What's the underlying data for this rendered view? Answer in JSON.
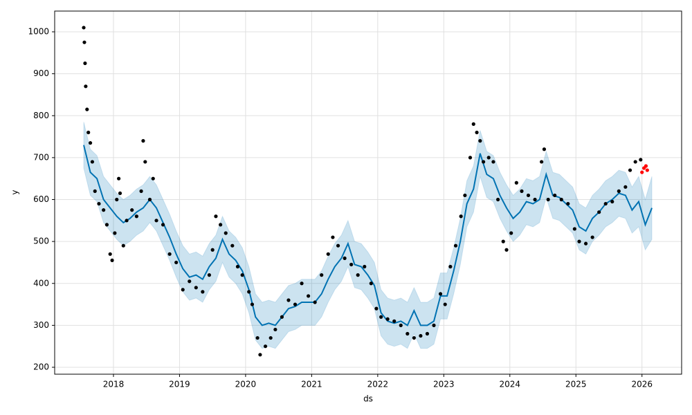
{
  "chart_data": {
    "type": "forecast",
    "x_label": "ds",
    "y_label": "y",
    "xlim": [
      2017.11,
      2026.6
    ],
    "ylim": [
      183.5,
      1049.5
    ],
    "xticks": [
      2018,
      2019,
      2020,
      2021,
      2022,
      2023,
      2024,
      2025,
      2026
    ],
    "yticks": [
      200,
      300,
      400,
      500,
      600,
      700,
      800,
      900,
      1000
    ],
    "grid": true,
    "forecast": {
      "color": "#0072b2",
      "band_color": "#0072b2",
      "x": [
        2017.55,
        2017.65,
        2017.75,
        2017.85,
        2017.95,
        2018.05,
        2018.15,
        2018.25,
        2018.35,
        2018.45,
        2018.55,
        2018.65,
        2018.75,
        2018.85,
        2018.95,
        2019.05,
        2019.15,
        2019.25,
        2019.35,
        2019.45,
        2019.55,
        2019.65,
        2019.75,
        2019.85,
        2019.95,
        2020.05,
        2020.15,
        2020.25,
        2020.35,
        2020.45,
        2020.55,
        2020.65,
        2020.75,
        2020.85,
        2020.95,
        2021.05,
        2021.15,
        2021.25,
        2021.35,
        2021.45,
        2021.55,
        2021.65,
        2021.75,
        2021.85,
        2021.95,
        2022.05,
        2022.15,
        2022.25,
        2022.35,
        2022.45,
        2022.55,
        2022.65,
        2022.75,
        2022.85,
        2022.95,
        2023.05,
        2023.15,
        2023.25,
        2023.35,
        2023.45,
        2023.55,
        2023.65,
        2023.75,
        2023.85,
        2023.95,
        2024.05,
        2024.15,
        2024.25,
        2024.35,
        2024.45,
        2024.55,
        2024.65,
        2024.75,
        2024.85,
        2024.95,
        2025.05,
        2025.15,
        2025.25,
        2025.35,
        2025.45,
        2025.55,
        2025.65,
        2025.75,
        2025.85,
        2025.95,
        2026.05,
        2026.15
      ],
      "values": [
        730,
        665,
        650,
        600,
        580,
        560,
        545,
        555,
        570,
        580,
        600,
        580,
        545,
        510,
        470,
        435,
        415,
        420,
        410,
        440,
        460,
        505,
        470,
        455,
        430,
        385,
        320,
        300,
        305,
        300,
        320,
        340,
        345,
        355,
        355,
        355,
        375,
        410,
        440,
        460,
        495,
        445,
        440,
        420,
        395,
        330,
        310,
        305,
        310,
        300,
        335,
        300,
        300,
        310,
        370,
        370,
        430,
        500,
        590,
        625,
        710,
        660,
        650,
        610,
        580,
        555,
        570,
        595,
        590,
        600,
        660,
        610,
        605,
        590,
        575,
        535,
        525,
        555,
        570,
        590,
        600,
        615,
        610,
        575,
        595,
        540,
        580
      ],
      "lower": [
        675,
        610,
        595,
        545,
        525,
        505,
        490,
        500,
        515,
        525,
        545,
        525,
        490,
        455,
        415,
        380,
        360,
        365,
        355,
        385,
        405,
        450,
        415,
        400,
        375,
        330,
        265,
        245,
        250,
        245,
        265,
        285,
        290,
        300,
        300,
        300,
        320,
        355,
        385,
        405,
        440,
        390,
        385,
        365,
        340,
        275,
        255,
        250,
        255,
        245,
        280,
        245,
        245,
        255,
        315,
        315,
        375,
        445,
        535,
        570,
        655,
        605,
        595,
        555,
        525,
        500,
        515,
        540,
        535,
        545,
        605,
        555,
        550,
        535,
        520,
        480,
        470,
        500,
        515,
        535,
        545,
        560,
        555,
        520,
        535,
        480,
        505
      ],
      "upper": [
        785,
        720,
        705,
        655,
        635,
        615,
        600,
        610,
        625,
        635,
        655,
        635,
        600,
        565,
        525,
        490,
        470,
        475,
        465,
        495,
        515,
        560,
        525,
        510,
        485,
        440,
        375,
        355,
        360,
        355,
        375,
        395,
        400,
        410,
        410,
        410,
        430,
        465,
        495,
        515,
        550,
        500,
        495,
        475,
        450,
        385,
        365,
        360,
        365,
        355,
        390,
        355,
        355,
        365,
        425,
        425,
        485,
        555,
        645,
        680,
        765,
        715,
        705,
        665,
        635,
        610,
        625,
        650,
        645,
        655,
        715,
        665,
        660,
        645,
        630,
        590,
        580,
        610,
        625,
        645,
        655,
        670,
        665,
        630,
        655,
        600,
        655
      ]
    },
    "history": {
      "color": "#000000",
      "x": [
        2017.55,
        2017.56,
        2017.57,
        2017.58,
        2017.6,
        2017.62,
        2017.65,
        2017.68,
        2017.72,
        2017.78,
        2017.85,
        2017.9,
        2017.95,
        2017.98,
        2018.02,
        2018.05,
        2018.08,
        2018.1,
        2018.15,
        2018.2,
        2018.28,
        2018.35,
        2018.42,
        2018.45,
        2018.48,
        2018.55,
        2018.6,
        2018.65,
        2018.75,
        2018.85,
        2018.95,
        2019.05,
        2019.15,
        2019.25,
        2019.35,
        2019.45,
        2019.5,
        2019.55,
        2019.62,
        2019.7,
        2019.8,
        2019.88,
        2019.95,
        2020.05,
        2020.1,
        2020.18,
        2020.22,
        2020.3,
        2020.38,
        2020.45,
        2020.55,
        2020.65,
        2020.75,
        2020.85,
        2020.95,
        2021.05,
        2021.15,
        2021.25,
        2021.32,
        2021.4,
        2021.5,
        2021.6,
        2021.7,
        2021.8,
        2021.9,
        2021.98,
        2022.05,
        2022.15,
        2022.25,
        2022.35,
        2022.45,
        2022.55,
        2022.65,
        2022.75,
        2022.85,
        2022.95,
        2023.02,
        2023.1,
        2023.18,
        2023.26,
        2023.32,
        2023.4,
        2023.45,
        2023.5,
        2023.55,
        2023.6,
        2023.68,
        2023.75,
        2023.82,
        2023.9,
        2023.95,
        2024.02,
        2024.1,
        2024.18,
        2024.28,
        2024.38,
        2024.48,
        2024.52,
        2024.58,
        2024.68,
        2024.78,
        2024.88,
        2024.98,
        2025.05,
        2025.15,
        2025.25,
        2025.35,
        2025.45,
        2025.55,
        2025.65,
        2025.75,
        2025.82,
        2025.9,
        2025.98
      ],
      "values": [
        1010,
        975,
        925,
        870,
        815,
        760,
        735,
        690,
        620,
        590,
        575,
        540,
        470,
        455,
        520,
        600,
        650,
        615,
        490,
        550,
        575,
        560,
        620,
        740,
        690,
        600,
        650,
        550,
        540,
        470,
        450,
        385,
        405,
        390,
        380,
        420,
        480,
        560,
        540,
        520,
        490,
        440,
        420,
        380,
        350,
        270,
        230,
        250,
        270,
        290,
        320,
        360,
        350,
        400,
        370,
        355,
        420,
        470,
        510,
        490,
        460,
        445,
        420,
        440,
        400,
        340,
        320,
        315,
        310,
        300,
        280,
        270,
        275,
        280,
        300,
        375,
        350,
        440,
        490,
        560,
        610,
        700,
        780,
        760,
        740,
        690,
        700,
        690,
        600,
        500,
        480,
        520,
        640,
        620,
        610,
        600,
        690,
        720,
        600,
        610,
        600,
        590,
        530,
        500,
        495,
        510,
        570,
        590,
        595,
        620,
        630,
        670,
        690,
        695
      ]
    },
    "recent": {
      "color": "#ff0000",
      "x": [
        2026.0,
        2026.03,
        2026.06,
        2026.08
      ],
      "values": [
        665,
        675,
        680,
        670
      ]
    }
  }
}
